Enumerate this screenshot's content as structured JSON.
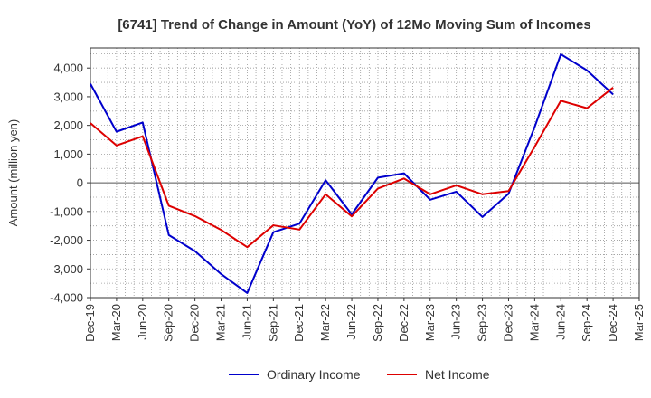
{
  "chart_data": {
    "type": "line",
    "title": "[6741]  Trend of Change in Amount (YoY) of 12Mo Moving Sum of Incomes",
    "xlabel": "",
    "ylabel": "Amount (million yen)",
    "x": [
      "Dec-19",
      "Mar-20",
      "Jun-20",
      "Sep-20",
      "Dec-20",
      "Mar-21",
      "Jun-21",
      "Sep-21",
      "Dec-21",
      "Mar-22",
      "Jun-22",
      "Sep-22",
      "Dec-22",
      "Mar-23",
      "Jun-23",
      "Sep-23",
      "Dec-23",
      "Mar-24",
      "Jun-24",
      "Sep-24",
      "Dec-24",
      "Mar-25"
    ],
    "yticks": [
      -4000,
      -3000,
      -2000,
      -1000,
      0,
      1000,
      2000,
      3000,
      4000
    ],
    "ytick_labels": [
      "-4,000",
      "-3,000",
      "-2,000",
      "-1,000",
      "0",
      "1,000",
      "2,000",
      "3,000",
      "4,000"
    ],
    "ylim": [
      -4000,
      4700
    ],
    "grid": true,
    "legend_position": "bottom",
    "series": [
      {
        "name": "Ordinary Income",
        "color": "#0000cc",
        "values": [
          3450,
          1780,
          2100,
          -1820,
          -2380,
          -3180,
          -3840,
          -1720,
          -1420,
          90,
          -1100,
          180,
          330,
          -590,
          -310,
          -1190,
          -380,
          1950,
          4480,
          3920,
          3080,
          null
        ]
      },
      {
        "name": "Net Income",
        "color": "#dd0000",
        "values": [
          2080,
          1300,
          1620,
          -800,
          -1160,
          -1640,
          -2240,
          -1480,
          -1630,
          -400,
          -1170,
          -200,
          150,
          -400,
          -90,
          -400,
          -290,
          1260,
          2860,
          2600,
          3320,
          null
        ]
      }
    ]
  }
}
